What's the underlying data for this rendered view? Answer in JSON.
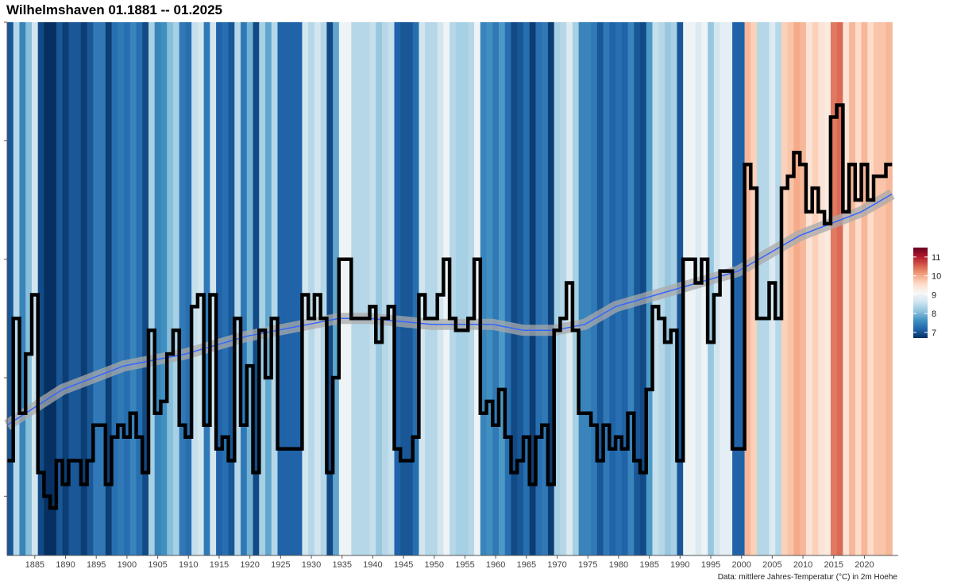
{
  "title": "Wilhelmshaven 01.1881 -- 01.2025",
  "caption": "Data: mittlere Jahres-Temperatur (°C) in 2m Hoehe",
  "chart_data": {
    "type": "warming-stripes",
    "title": "Wilhelmshaven 01.1881 -- 01.2025",
    "xlabel": "",
    "ylabel": "",
    "x_range": [
      1881,
      2025
    ],
    "x_ticks": [
      1885,
      1890,
      1895,
      1900,
      1905,
      1910,
      1915,
      1920,
      1925,
      1930,
      1935,
      1940,
      1945,
      1950,
      1955,
      1960,
      1965,
      1970,
      1975,
      1980,
      1985,
      1990,
      1995,
      2000,
      2005,
      2010,
      2015,
      2020
    ],
    "y_range": [
      6.5,
      11.0
    ],
    "grid": false,
    "series": [
      {
        "type": "step",
        "years": [
          1881,
          1882,
          1883,
          1884,
          1885,
          1886,
          1887,
          1888,
          1889,
          1890,
          1891,
          1892,
          1893,
          1894,
          1895,
          1896,
          1897,
          1898,
          1899,
          1900,
          1901,
          1902,
          1903,
          1904,
          1905,
          1906,
          1907,
          1908,
          1909,
          1910,
          1911,
          1912,
          1913,
          1914,
          1915,
          1916,
          1917,
          1918,
          1919,
          1920,
          1921,
          1922,
          1923,
          1924,
          1925,
          1926,
          1927,
          1928,
          1929,
          1930,
          1931,
          1932,
          1933,
          1934,
          1935,
          1936,
          1937,
          1938,
          1939,
          1940,
          1941,
          1942,
          1943,
          1944,
          1945,
          1946,
          1947,
          1948,
          1949,
          1950,
          1951,
          1952,
          1953,
          1954,
          1955,
          1956,
          1957,
          1958,
          1959,
          1960,
          1961,
          1962,
          1963,
          1964,
          1965,
          1966,
          1967,
          1968,
          1969,
          1970,
          1971,
          1972,
          1973,
          1974,
          1975,
          1976,
          1977,
          1978,
          1979,
          1980,
          1981,
          1982,
          1983,
          1984,
          1985,
          1986,
          1987,
          1988,
          1989,
          1990,
          1991,
          1992,
          1993,
          1994,
          1995,
          1996,
          1997,
          1998,
          1999,
          2000,
          2001,
          2002,
          2003,
          2004,
          2005,
          2006,
          2007,
          2008,
          2009,
          2010,
          2011,
          2012,
          2013,
          2014,
          2015,
          2016,
          2017,
          2018,
          2019,
          2020,
          2021,
          2022,
          2023,
          2024
        ],
        "values": [
          7.3,
          8.5,
          7.7,
          8.2,
          8.7,
          7.2,
          7.0,
          6.9,
          7.3,
          7.1,
          7.3,
          7.3,
          7.1,
          7.3,
          7.6,
          7.6,
          7.1,
          7.5,
          7.6,
          7.5,
          7.7,
          7.5,
          7.2,
          8.4,
          7.7,
          7.8,
          8.2,
          8.4,
          7.6,
          7.5,
          8.6,
          8.7,
          7.6,
          8.7,
          7.4,
          7.5,
          7.3,
          8.5,
          7.6,
          8.1,
          7.2,
          8.4,
          8.0,
          8.5,
          7.4,
          7.4,
          7.4,
          7.4,
          8.7,
          8.5,
          8.7,
          8.5,
          7.2,
          8.0,
          9.0,
          9.0,
          8.5,
          8.5,
          8.5,
          8.6,
          8.3,
          8.5,
          8.6,
          7.4,
          7.3,
          7.3,
          7.5,
          8.7,
          8.5,
          8.5,
          8.7,
          9.0,
          8.5,
          8.4,
          8.4,
          8.5,
          9.0,
          7.7,
          7.8,
          7.6,
          7.9,
          7.5,
          7.2,
          7.3,
          7.5,
          7.1,
          7.5,
          7.6,
          7.1,
          8.4,
          8.5,
          8.8,
          8.4,
          7.7,
          7.7,
          7.6,
          7.3,
          7.6,
          7.4,
          7.5,
          7.4,
          7.7,
          7.3,
          7.2,
          7.9,
          8.6,
          8.5,
          8.3,
          8.4,
          7.3,
          9.0,
          9.0,
          8.8,
          9.0,
          8.3,
          8.7,
          8.9,
          8.9,
          7.4,
          7.4,
          9.8,
          9.6,
          8.5,
          8.5,
          8.8,
          8.5,
          9.6,
          9.7,
          9.9,
          9.8,
          9.4,
          9.6,
          9.4,
          9.3,
          10.2,
          10.3,
          9.4,
          9.8,
          9.5,
          9.8,
          9.5,
          9.7,
          9.7,
          9.8
        ]
      },
      {
        "type": "loess-trend",
        "name": "",
        "x": [
          1881,
          1890,
          1900,
          1910,
          1920,
          1930,
          1935,
          1940,
          1950,
          1960,
          1965,
          1970,
          1975,
          1980,
          1990,
          2000,
          2010,
          2020,
          2025
        ],
        "values": [
          7.6,
          7.9,
          8.1,
          8.2,
          8.35,
          8.45,
          8.5,
          8.5,
          8.45,
          8.45,
          8.4,
          8.4,
          8.45,
          8.6,
          8.75,
          8.9,
          9.2,
          9.4,
          9.55
        ]
      }
    ],
    "colorbar": {
      "ticks": [
        11,
        10,
        9,
        8,
        7
      ],
      "colors": [
        "#67001f",
        "#b2182b",
        "#d6604d",
        "#f4a582",
        "#fddbc7",
        "#f7f7f7",
        "#d1e5f0",
        "#92c5de",
        "#4393c3",
        "#2166ac",
        "#053061"
      ]
    }
  }
}
